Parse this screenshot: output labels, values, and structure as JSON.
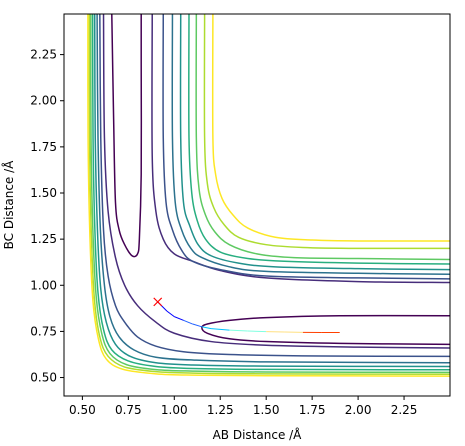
{
  "chart_data": {
    "type": "contour",
    "title": "",
    "xlabel": "AB Distance /Å",
    "ylabel": "BC Distance /Å",
    "xlim": [
      0.4,
      2.5
    ],
    "ylim": [
      0.4,
      2.47
    ],
    "xticks": [
      "0.50",
      "0.75",
      "1.00",
      "1.25",
      "1.50",
      "1.75",
      "2.00",
      "2.25"
    ],
    "yticks": [
      "0.50",
      "0.75",
      "1.00",
      "1.25",
      "1.50",
      "1.75",
      "2.00",
      "2.25"
    ],
    "grid": false,
    "colormap": "viridis",
    "contour_levels": [
      {
        "name": "level-1",
        "color": "#440154",
        "paths": [
          [
            [
              0.66,
              2.47
            ],
            [
              0.67,
              1.9
            ],
            [
              0.68,
              1.45
            ],
            [
              0.7,
              1.3
            ],
            [
              0.73,
              1.22
            ],
            [
              0.77,
              1.16
            ],
            [
              0.8,
              1.17
            ],
            [
              0.81,
              1.25
            ],
            [
              0.82,
              1.6
            ],
            [
              0.82,
              2.2
            ],
            [
              0.82,
              2.47
            ]
          ],
          [
            [
              2.5,
              0.835
            ],
            [
              1.9,
              0.835
            ],
            [
              1.5,
              0.825
            ],
            [
              1.3,
              0.81
            ],
            [
              1.18,
              0.79
            ],
            [
              1.15,
              0.77
            ],
            [
              1.18,
              0.74
            ],
            [
              1.3,
              0.71
            ],
            [
              1.5,
              0.695
            ],
            [
              1.9,
              0.685
            ],
            [
              2.5,
              0.68
            ]
          ]
        ]
      },
      {
        "name": "level-2",
        "color": "#472d7b",
        "paths": [
          [
            [
              0.615,
              2.47
            ],
            [
              0.62,
              1.8
            ],
            [
              0.64,
              1.4
            ],
            [
              0.68,
              1.15
            ],
            [
              0.73,
              1.0
            ],
            [
              0.8,
              0.89
            ],
            [
              0.9,
              0.8
            ],
            [
              1.0,
              0.74
            ],
            [
              1.2,
              0.695
            ],
            [
              1.5,
              0.675
            ],
            [
              2.0,
              0.665
            ],
            [
              2.5,
              0.66
            ]
          ]
        ]
      },
      {
        "name": "level-3",
        "color": "#3b528b",
        "paths": [
          [
            [
              0.595,
              2.47
            ],
            [
              0.6,
              1.8
            ],
            [
              0.615,
              1.3
            ],
            [
              0.64,
              1.05
            ],
            [
              0.68,
              0.89
            ],
            [
              0.73,
              0.8
            ],
            [
              0.8,
              0.72
            ],
            [
              0.9,
              0.67
            ],
            [
              1.05,
              0.64
            ],
            [
              1.3,
              0.625
            ],
            [
              1.8,
              0.617
            ],
            [
              2.5,
              0.615
            ]
          ]
        ]
      },
      {
        "name": "level-4",
        "color": "#2c728e",
        "paths": [
          [
            [
              0.58,
              2.47
            ],
            [
              0.585,
              1.8
            ],
            [
              0.598,
              1.3
            ],
            [
              0.62,
              1.0
            ],
            [
              0.65,
              0.83
            ],
            [
              0.7,
              0.72
            ],
            [
              0.78,
              0.65
            ],
            [
              0.9,
              0.61
            ],
            [
              1.1,
              0.595
            ],
            [
              1.5,
              0.585
            ],
            [
              2.5,
              0.58
            ]
          ]
        ]
      },
      {
        "name": "level-5",
        "color": "#21918c",
        "paths": [
          [
            [
              0.567,
              2.47
            ],
            [
              0.57,
              1.8
            ],
            [
              0.582,
              1.3
            ],
            [
              0.6,
              0.98
            ],
            [
              0.63,
              0.8
            ],
            [
              0.68,
              0.68
            ],
            [
              0.76,
              0.615
            ],
            [
              0.9,
              0.58
            ],
            [
              1.1,
              0.568
            ],
            [
              1.5,
              0.562
            ],
            [
              2.5,
              0.56
            ]
          ]
        ]
      },
      {
        "name": "level-6",
        "color": "#28ae80",
        "paths": [
          [
            [
              0.556,
              2.47
            ],
            [
              0.558,
              1.8
            ],
            [
              0.568,
              1.3
            ],
            [
              0.585,
              0.96
            ],
            [
              0.615,
              0.76
            ],
            [
              0.66,
              0.65
            ],
            [
              0.75,
              0.59
            ],
            [
              0.9,
              0.56
            ],
            [
              1.1,
              0.549
            ],
            [
              1.5,
              0.544
            ],
            [
              2.5,
              0.542
            ]
          ]
        ]
      },
      {
        "name": "level-7",
        "color": "#5ec962",
        "paths": [
          [
            [
              0.546,
              2.47
            ],
            [
              0.547,
              1.8
            ],
            [
              0.557,
              1.3
            ],
            [
              0.575,
              0.94
            ],
            [
              0.605,
              0.74
            ],
            [
              0.65,
              0.63
            ],
            [
              0.74,
              0.57
            ],
            [
              0.9,
              0.543
            ],
            [
              1.1,
              0.535
            ],
            [
              1.5,
              0.53
            ],
            [
              2.5,
              0.528
            ]
          ]
        ]
      },
      {
        "name": "level-8",
        "color": "#addc30",
        "paths": [
          [
            [
              0.538,
              2.47
            ],
            [
              0.539,
              1.8
            ],
            [
              0.548,
              1.3
            ],
            [
              0.565,
              0.93
            ],
            [
              0.595,
              0.72
            ],
            [
              0.64,
              0.615
            ],
            [
              0.73,
              0.557
            ],
            [
              0.9,
              0.532
            ],
            [
              1.1,
              0.524
            ],
            [
              1.5,
              0.52
            ],
            [
              2.5,
              0.518
            ]
          ]
        ]
      },
      {
        "name": "level-9",
        "color": "#fde725",
        "paths": [
          [
            [
              0.53,
              2.47
            ],
            [
              0.531,
              1.8
            ],
            [
              0.54,
              1.3
            ],
            [
              0.557,
              0.92
            ],
            [
              0.587,
              0.71
            ],
            [
              0.63,
              0.6
            ],
            [
              0.72,
              0.545
            ],
            [
              0.9,
              0.52
            ],
            [
              1.1,
              0.513
            ],
            [
              1.5,
              0.51
            ],
            [
              2.5,
              0.508
            ]
          ]
        ]
      },
      {
        "name": "level-inner-2",
        "color": "#472d7b",
        "paths": [
          [
            [
              0.88,
              2.47
            ],
            [
              0.88,
              1.7
            ],
            [
              0.9,
              1.4
            ],
            [
              0.94,
              1.25
            ],
            [
              1.0,
              1.17
            ],
            [
              1.1,
              1.13
            ],
            [
              1.25,
              1.08
            ],
            [
              1.5,
              1.04
            ],
            [
              2.0,
              1.02
            ],
            [
              2.5,
              1.015
            ]
          ]
        ]
      },
      {
        "name": "level-inner-3",
        "color": "#3b528b",
        "paths": [
          [
            [
              0.94,
              2.47
            ],
            [
              0.94,
              1.8
            ],
            [
              0.955,
              1.45
            ],
            [
              0.99,
              1.3
            ],
            [
              1.04,
              1.19
            ],
            [
              1.1,
              1.13
            ],
            [
              1.25,
              1.085
            ],
            [
              1.5,
              1.05
            ],
            [
              2.0,
              1.04
            ],
            [
              2.5,
              1.035
            ]
          ]
        ]
      },
      {
        "name": "level-inner-4",
        "color": "#2c728e",
        "paths": [
          [
            [
              0.99,
              2.47
            ],
            [
              0.99,
              1.8
            ],
            [
              1.005,
              1.45
            ],
            [
              1.04,
              1.3
            ],
            [
              1.09,
              1.2
            ],
            [
              1.15,
              1.15
            ],
            [
              1.3,
              1.1
            ],
            [
              1.5,
              1.075
            ],
            [
              2.0,
              1.065
            ],
            [
              2.5,
              1.06
            ]
          ]
        ]
      },
      {
        "name": "level-inner-5",
        "color": "#21918c",
        "paths": [
          [
            [
              1.035,
              2.47
            ],
            [
              1.035,
              1.8
            ],
            [
              1.05,
              1.45
            ],
            [
              1.085,
              1.32
            ],
            [
              1.13,
              1.22
            ],
            [
              1.2,
              1.16
            ],
            [
              1.35,
              1.12
            ],
            [
              1.55,
              1.1
            ],
            [
              2.0,
              1.09
            ],
            [
              2.5,
              1.085
            ]
          ]
        ]
      },
      {
        "name": "level-inner-6",
        "color": "#28ae80",
        "paths": [
          [
            [
              1.08,
              2.47
            ],
            [
              1.08,
              1.8
            ],
            [
              1.095,
              1.5
            ],
            [
              1.125,
              1.35
            ],
            [
              1.17,
              1.25
            ],
            [
              1.25,
              1.18
            ],
            [
              1.4,
              1.145
            ],
            [
              1.6,
              1.13
            ],
            [
              2.0,
              1.12
            ],
            [
              2.5,
              1.115
            ]
          ]
        ]
      },
      {
        "name": "level-inner-7",
        "color": "#5ec962",
        "paths": [
          [
            [
              1.12,
              2.47
            ],
            [
              1.12,
              1.8
            ],
            [
              1.135,
              1.52
            ],
            [
              1.17,
              1.38
            ],
            [
              1.22,
              1.29
            ],
            [
              1.3,
              1.22
            ],
            [
              1.45,
              1.17
            ],
            [
              1.65,
              1.15
            ],
            [
              2.0,
              1.145
            ],
            [
              2.5,
              1.14
            ]
          ]
        ]
      },
      {
        "name": "level-inner-8",
        "color": "#addc30",
        "paths": [
          [
            [
              1.165,
              2.47
            ],
            [
              1.165,
              1.8
            ],
            [
              1.18,
              1.55
            ],
            [
              1.215,
              1.42
            ],
            [
              1.27,
              1.33
            ],
            [
              1.35,
              1.26
            ],
            [
              1.5,
              1.22
            ],
            [
              1.7,
              1.205
            ],
            [
              2.0,
              1.2
            ],
            [
              2.5,
              1.2
            ]
          ]
        ]
      },
      {
        "name": "level-inner-9",
        "color": "#fde725",
        "paths": [
          [
            [
              1.21,
              2.47
            ],
            [
              1.21,
              1.8
            ],
            [
              1.225,
              1.6
            ],
            [
              1.26,
              1.47
            ],
            [
              1.32,
              1.38
            ],
            [
              1.4,
              1.31
            ],
            [
              1.55,
              1.26
            ],
            [
              1.75,
              1.245
            ],
            [
              2.0,
              1.24
            ],
            [
              2.5,
              1.24
            ]
          ]
        ]
      }
    ],
    "marker": {
      "type": "x",
      "color": "#ff0000",
      "x": 0.91,
      "y": 0.91
    },
    "trajectory": {
      "colors": [
        "#0000ff",
        "#2060ff",
        "#00c0ff",
        "#80ffe0",
        "#ffe080",
        "#ff4000"
      ],
      "points": [
        [
          0.91,
          0.91
        ],
        [
          0.96,
          0.86
        ],
        [
          1.0,
          0.83
        ],
        [
          1.05,
          0.81
        ],
        [
          1.1,
          0.79
        ],
        [
          1.15,
          0.775
        ],
        [
          1.2,
          0.765
        ],
        [
          1.3,
          0.757
        ],
        [
          1.4,
          0.752
        ],
        [
          1.5,
          0.749
        ],
        [
          1.6,
          0.747
        ],
        [
          1.7,
          0.745
        ],
        [
          1.8,
          0.744
        ],
        [
          1.9,
          0.744
        ]
      ]
    }
  }
}
